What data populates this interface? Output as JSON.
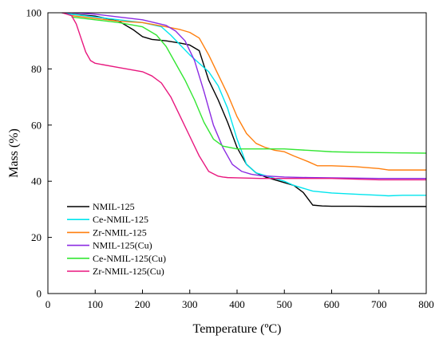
{
  "chart_data": {
    "type": "line",
    "title": "",
    "xlabel": "Temperature (ºC)",
    "ylabel": "Mass (%)",
    "xlim": [
      0,
      800
    ],
    "ylim": [
      0,
      100
    ],
    "x_ticks": [
      0,
      100,
      200,
      300,
      400,
      500,
      600,
      700,
      800
    ],
    "y_ticks": [
      0,
      20,
      40,
      60,
      80,
      100
    ],
    "grid": false,
    "legend_position": "bottom-left",
    "series": [
      {
        "name": "NMIL-125",
        "color": "#000000",
        "x": [
          30,
          50,
          100,
          150,
          180,
          200,
          220,
          250,
          280,
          300,
          320,
          340,
          360,
          380,
          400,
          420,
          440,
          460,
          480,
          500,
          520,
          540,
          560,
          580,
          600,
          650,
          700,
          750,
          800
        ],
        "y": [
          100,
          99.5,
          98.8,
          97,
          94,
          91.5,
          90.5,
          90,
          89.2,
          88.5,
          86.5,
          76,
          69,
          61,
          52,
          46,
          43,
          41.5,
          40.5,
          39.5,
          38.5,
          36,
          31.5,
          31.2,
          31.1,
          31.1,
          31,
          31,
          31
        ]
      },
      {
        "name": "Ce-NMIL-125",
        "color": "#00e5ee",
        "x": [
          30,
          50,
          100,
          150,
          200,
          240,
          260,
          300,
          320,
          340,
          360,
          380,
          400,
          420,
          440,
          460,
          480,
          500,
          520,
          560,
          600,
          650,
          700,
          720,
          750,
          800
        ],
        "y": [
          100,
          99.5,
          98.5,
          97.5,
          96.5,
          95,
          92,
          85,
          82,
          79,
          74,
          66,
          55,
          46,
          43,
          42,
          41,
          40,
          38.5,
          36.5,
          35.8,
          35.4,
          35,
          34.8,
          35,
          35
        ]
      },
      {
        "name": "Zr-NMIL-125",
        "color": "#ff7f0e",
        "x": [
          50,
          100,
          150,
          200,
          250,
          280,
          300,
          320,
          340,
          360,
          380,
          400,
          420,
          440,
          460,
          480,
          500,
          520,
          550,
          570,
          600,
          650,
          700,
          720,
          750,
          800
        ],
        "y": [
          99,
          98,
          97,
          96.5,
          95,
          94,
          93,
          91,
          85,
          78,
          71,
          63,
          57,
          53.5,
          52,
          51,
          50.5,
          49,
          47,
          45.5,
          45.5,
          45.2,
          44.5,
          44,
          44,
          44
        ]
      },
      {
        "name": "NMIL-125(Cu)",
        "color": "#8b2be2",
        "x": [
          30,
          50,
          100,
          150,
          200,
          250,
          270,
          290,
          310,
          330,
          350,
          370,
          390,
          410,
          430,
          450,
          500,
          550,
          600,
          650,
          700,
          750,
          800
        ],
        "y": [
          100,
          100,
          99.5,
          98.5,
          97.5,
          95.5,
          93.5,
          90,
          83,
          72,
          60,
          52,
          46,
          43.5,
          42.5,
          42,
          41.5,
          41.3,
          41.2,
          41.1,
          41,
          41,
          41
        ]
      },
      {
        "name": "Ce-NMIL-125(Cu)",
        "color": "#33e633",
        "x": [
          50,
          100,
          150,
          200,
          230,
          250,
          270,
          290,
          310,
          330,
          350,
          370,
          400,
          450,
          500,
          550,
          600,
          650,
          700,
          750,
          800
        ],
        "y": [
          98.5,
          97.5,
          96.5,
          95,
          92,
          88,
          82,
          76,
          69,
          61,
          55,
          52.5,
          51.5,
          51.5,
          51.5,
          51,
          50.5,
          50.3,
          50.2,
          50.1,
          50
        ]
      },
      {
        "name": "Zr-NMIL-125(Cu)",
        "color": "#e8177e",
        "x": [
          30,
          50,
          60,
          70,
          80,
          90,
          100,
          150,
          200,
          220,
          240,
          260,
          280,
          300,
          320,
          340,
          360,
          370,
          380,
          400,
          450,
          500,
          600,
          700,
          800
        ],
        "y": [
          100,
          99,
          96,
          91,
          86,
          83,
          82,
          80.5,
          79,
          77.5,
          75,
          70,
          63,
          56,
          49,
          43.5,
          41.8,
          41.5,
          41.3,
          41.2,
          41,
          41,
          41,
          40.5,
          40.5
        ]
      }
    ]
  }
}
